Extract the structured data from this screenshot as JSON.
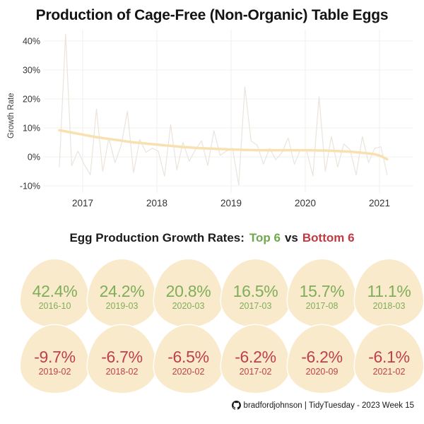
{
  "title": "Production of Cage-Free (Non-Organic) Table Eggs",
  "subtitle": {
    "prefix": "Egg Production Growth Rates:",
    "top_label": "Top 6",
    "vs": "vs",
    "bottom_label": "Bottom 6"
  },
  "colors": {
    "top_green": "#6fa84f",
    "bottom_red": "#c03a42",
    "egg_fill": "#faeacc",
    "trend_line": "#f9e0b0",
    "raw_line": "#ebe4dc",
    "gridline": "#f1f0ee"
  },
  "chart_data": {
    "type": "line",
    "title": "Production of Cage-Free (Non-Organic) Table Eggs",
    "xlabel": "",
    "ylabel": "Growth Rate",
    "x_frequency": "monthly",
    "x_start": "2016-09",
    "x_end": "2021-02",
    "x_ticks": [
      "2017",
      "2018",
      "2019",
      "2020",
      "2021"
    ],
    "y_ticks": [
      "40%",
      "30%",
      "20%",
      "10%",
      "0%",
      "-10%"
    ],
    "y_tick_values": [
      40,
      30,
      20,
      10,
      0,
      -10
    ],
    "ylim": [
      -13,
      45
    ],
    "grid": true,
    "legend": false,
    "series": [
      {
        "name": "monthly-growth-rate",
        "color": "#ebe4dc",
        "values": [
          -3.5,
          42.4,
          -3.0,
          2.0,
          -2.5,
          -6.2,
          16.5,
          -5.0,
          6.5,
          -2.0,
          4.0,
          15.7,
          -5.5,
          6.0,
          1.5,
          3.0,
          2.0,
          -6.7,
          11.1,
          -4.5,
          5.0,
          -1.5,
          2.5,
          5.5,
          -3.0,
          9.0,
          0.5,
          2.0,
          3.0,
          -9.7,
          24.2,
          5.5,
          4.0,
          -2.5,
          3.0,
          -1.0,
          1.5,
          6.5,
          -2.5,
          2.5,
          2.0,
          -6.5,
          20.8,
          -5.0,
          7.0,
          -3.5,
          4.5,
          2.5,
          -6.2,
          7.0,
          -2.0,
          3.0,
          3.5,
          -6.1
        ]
      },
      {
        "name": "smoothed-trend",
        "color": "#f9e0b0",
        "values": [
          9.2,
          8.8,
          8.4,
          8.0,
          7.6,
          7.2,
          6.8,
          6.5,
          6.2,
          5.9,
          5.6,
          5.3,
          5.0,
          4.8,
          4.6,
          4.4,
          4.2,
          4.0,
          3.8,
          3.6,
          3.4,
          3.3,
          3.1,
          3.0,
          2.9,
          2.8,
          2.7,
          2.6,
          2.5,
          2.5,
          2.4,
          2.4,
          2.3,
          2.3,
          2.3,
          2.3,
          2.3,
          2.3,
          2.3,
          2.3,
          2.3,
          2.3,
          2.2,
          2.2,
          2.1,
          2.0,
          1.9,
          1.8,
          1.6,
          1.4,
          1.2,
          0.9,
          0.3,
          -0.8
        ]
      }
    ],
    "annotated_extremes": {
      "top6": [
        {
          "label": "42.4%",
          "month": "2016-10"
        },
        {
          "label": "24.2%",
          "month": "2019-03"
        },
        {
          "label": "20.8%",
          "month": "2020-03"
        },
        {
          "label": "16.5%",
          "month": "2017-03"
        },
        {
          "label": "15.7%",
          "month": "2017-08"
        },
        {
          "label": "11.1%",
          "month": "2018-03"
        }
      ],
      "bottom6": [
        {
          "label": "-9.7%",
          "month": "2019-02"
        },
        {
          "label": "-6.7%",
          "month": "2018-02"
        },
        {
          "label": "-6.5%",
          "month": "2020-02"
        },
        {
          "label": "-6.2%",
          "month": "2017-02"
        },
        {
          "label": "-6.2%",
          "month": "2020-09"
        },
        {
          "label": "-6.1%",
          "month": "2021-02"
        }
      ]
    }
  },
  "badges": {
    "top": [
      {
        "value": "42.4%",
        "date": "2016-10"
      },
      {
        "value": "24.2%",
        "date": "2019-03"
      },
      {
        "value": "20.8%",
        "date": "2020-03"
      },
      {
        "value": "16.5%",
        "date": "2017-03"
      },
      {
        "value": "15.7%",
        "date": "2017-08"
      },
      {
        "value": "11.1%",
        "date": "2018-03"
      }
    ],
    "bottom": [
      {
        "value": "-9.7%",
        "date": "2019-02"
      },
      {
        "value": "-6.7%",
        "date": "2018-02"
      },
      {
        "value": "-6.5%",
        "date": "2020-02"
      },
      {
        "value": "-6.2%",
        "date": "2017-02"
      },
      {
        "value": "-6.2%",
        "date": "2020-09"
      },
      {
        "value": "-6.1%",
        "date": "2021-02"
      }
    ]
  },
  "footer": {
    "icon": "github-icon",
    "text": "bradfordjohnson | TidyTuesday - 2023 Week 15"
  }
}
